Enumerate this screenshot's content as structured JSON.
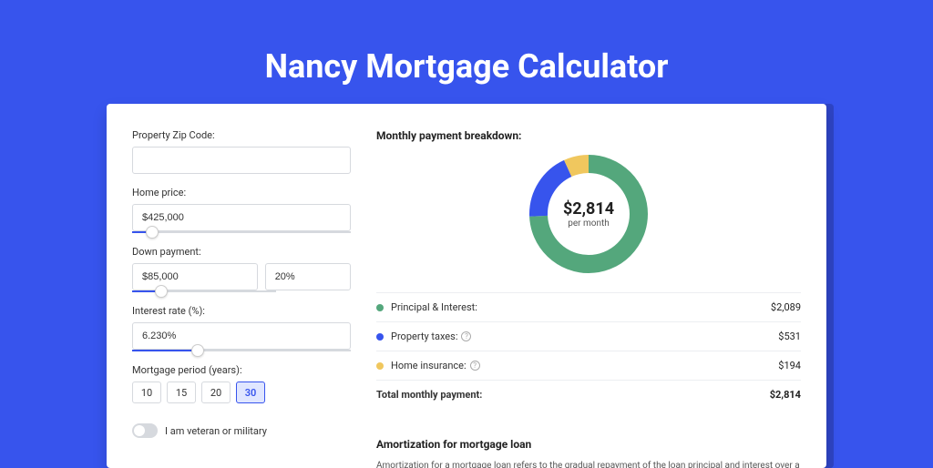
{
  "page": {
    "title": "Nancy Mortgage Calculator",
    "background_color": "#3754ed",
    "card_background": "#ffffff"
  },
  "form": {
    "zip": {
      "label": "Property Zip Code:",
      "value": ""
    },
    "home_price": {
      "label": "Home price:",
      "value": "$425,000",
      "slider_percent": 9
    },
    "down_payment": {
      "label": "Down payment:",
      "value": "$85,000",
      "percent": "20%",
      "slider_percent": 20
    },
    "interest_rate": {
      "label": "Interest rate (%):",
      "value": "6.230%",
      "slider_percent": 30
    },
    "period": {
      "label": "Mortgage period (years):",
      "options": [
        "10",
        "15",
        "20",
        "30"
      ],
      "selected": "30"
    },
    "veteran": {
      "label": "I am veteran or military",
      "checked": false
    }
  },
  "breakdown": {
    "title": "Monthly payment breakdown:",
    "center_amount": "$2,814",
    "center_sub": "per month",
    "items": [
      {
        "label": "Principal & Interest:",
        "value": "$2,089",
        "amount": 2089,
        "color": "#54a77c",
        "info": false
      },
      {
        "label": "Property taxes:",
        "value": "$531",
        "amount": 531,
        "color": "#3754ed",
        "info": true
      },
      {
        "label": "Home insurance:",
        "value": "$194",
        "amount": 194,
        "color": "#f0c75e",
        "info": true
      }
    ],
    "total": {
      "label": "Total monthly payment:",
      "value": "$2,814",
      "amount": 2814
    }
  },
  "donut": {
    "stroke_width": 20,
    "radius": 55,
    "background_color": "#ffffff"
  },
  "amortization": {
    "title": "Amortization for mortgage loan",
    "text": "Amortization for a mortgage loan refers to the gradual repayment of the loan principal and interest over a specified"
  }
}
